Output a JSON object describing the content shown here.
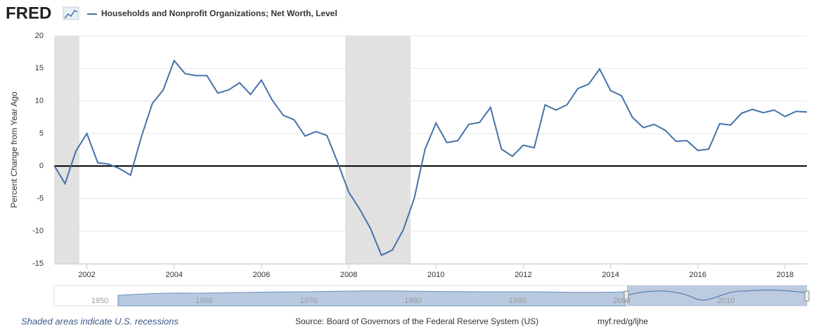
{
  "logo": "FRED",
  "chart_data": {
    "type": "line",
    "title": "Households and Nonprofit Organizations; Net Worth, Level",
    "y_label": "Percent Change from Year Ago",
    "x": [
      2001.25,
      2001.5,
      2001.75,
      2002,
      2002.25,
      2002.5,
      2002.75,
      2003,
      2003.25,
      2003.5,
      2003.75,
      2004,
      2004.25,
      2004.5,
      2004.75,
      2005,
      2005.25,
      2005.5,
      2005.75,
      2006,
      2006.25,
      2006.5,
      2006.75,
      2007,
      2007.25,
      2007.5,
      2007.75,
      2008,
      2008.25,
      2008.5,
      2008.75,
      2009,
      2009.25,
      2009.5,
      2009.75,
      2010,
      2010.25,
      2010.5,
      2010.75,
      2011,
      2011.25,
      2011.5,
      2011.75,
      2012,
      2012.25,
      2012.5,
      2012.75,
      2013,
      2013.25,
      2013.5,
      2013.75,
      2014,
      2014.25,
      2014.5,
      2014.75,
      2015,
      2015.25,
      2015.5,
      2015.75,
      2016,
      2016.25,
      2016.5,
      2016.75,
      2017,
      2017.25,
      2017.5,
      2017.75,
      2018,
      2018.25,
      2018.5
    ],
    "series": [
      {
        "name": "Households and Nonprofit Organizations; Net Worth, Level",
        "color": "#4572a7",
        "values": [
          0.1,
          -2.7,
          2.3,
          5.0,
          0.5,
          0.3,
          -0.4,
          -1.4,
          4.5,
          9.6,
          11.7,
          16.2,
          14.2,
          13.9,
          13.9,
          11.2,
          11.7,
          12.8,
          11.0,
          13.2,
          10.1,
          7.8,
          7.1,
          4.6,
          5.3,
          4.7,
          0.5,
          -4.0,
          -6.6,
          -9.6,
          -13.7,
          -12.9,
          -9.8,
          -5.0,
          2.6,
          6.6,
          3.6,
          3.9,
          6.4,
          6.7,
          9.0,
          2.6,
          1.5,
          3.2,
          2.8,
          9.4,
          8.6,
          9.4,
          11.9,
          12.6,
          14.9,
          11.6,
          10.8,
          7.5,
          5.9,
          6.4,
          5.5,
          3.8,
          3.9,
          2.4,
          2.6,
          6.5,
          6.3,
          8.1,
          8.7,
          8.2,
          8.6,
          7.6,
          8.4,
          8.3
        ]
      }
    ],
    "recessions": [
      [
        2001.25,
        2001.83
      ],
      [
        2007.92,
        2009.42
      ]
    ],
    "xlim": [
      2001.25,
      2018.5
    ],
    "xticks": [
      2002,
      2004,
      2006,
      2008,
      2010,
      2012,
      2014,
      2016,
      2018
    ],
    "ylim": [
      -15,
      20
    ],
    "yticks": [
      -15,
      -10,
      -5,
      0,
      5,
      10,
      15,
      20
    ],
    "grid": true,
    "recession_note": "Shaded areas indicate U.S. recessions",
    "source": "Source: Board of Governors of the Federal Reserve System (US)",
    "link": "myf.red/g/ljhe"
  },
  "navigator": {
    "labels": [
      "1950",
      "1960",
      "1970",
      "1980",
      "1990",
      "2000",
      "2010"
    ]
  }
}
